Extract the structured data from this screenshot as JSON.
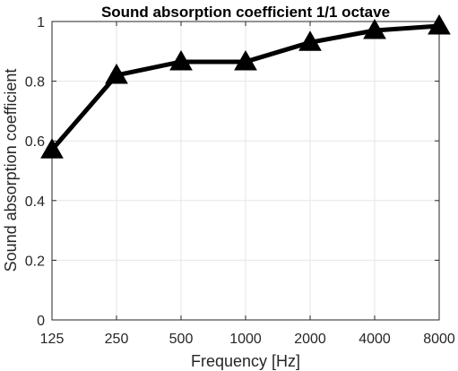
{
  "chart_data": {
    "type": "line",
    "title": "Sound absorption coefficient 1/1 octave",
    "xlabel": "Frequency [Hz]",
    "ylabel": "Sound absorption coefficient",
    "categories": [
      "125",
      "250",
      "500",
      "1000",
      "2000",
      "4000",
      "8000"
    ],
    "values": [
      0.57,
      0.82,
      0.865,
      0.865,
      0.93,
      0.97,
      0.985
    ],
    "ylim": [
      0,
      1
    ],
    "yticks": [
      "0",
      "0.2",
      "0.4",
      "0.6",
      "0.8",
      "1"
    ],
    "grid": true,
    "marker": "triangle-up",
    "line_color": "#000000",
    "grid_color": "#e6e6e6",
    "axis_color": "#262626"
  }
}
